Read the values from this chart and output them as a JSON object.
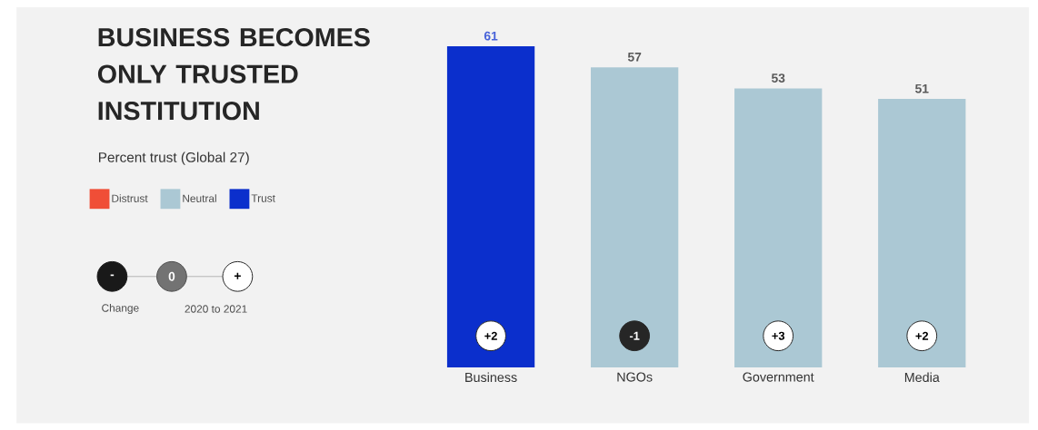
{
  "chart_data": {
    "type": "bar",
    "title": "BUSINESS BECOMES ONLY TRUSTED INSTITUTION",
    "subtitle": "Percent trust (Global 27)",
    "categories": [
      "Business",
      "NGOs",
      "Government",
      "Media"
    ],
    "series": [
      {
        "name": "Distrust",
        "color": "#f04e37",
        "values": [
          null,
          null,
          null,
          null
        ]
      },
      {
        "name": "Neutral",
        "color": "#abc8d4",
        "values": [
          null,
          57,
          53,
          51
        ]
      },
      {
        "name": "Trust",
        "color": "#0b2fcc",
        "values": [
          61,
          null,
          null,
          null
        ]
      }
    ],
    "tick_labels": "x",
    "data_labels": true,
    "legend": "left",
    "annotations": [
      {
        "text": "+2",
        "x": "Business",
        "y": 6
      },
      {
        "text": "-1",
        "x": "NGOs",
        "y": 6
      },
      {
        "text": "+3",
        "x": "Government",
        "y": 6
      },
      {
        "text": "+2",
        "x": "Media",
        "y": 6
      },
      "-",
      "0",
      "+",
      "Change",
      "2020 to 2021"
    ]
  }
}
